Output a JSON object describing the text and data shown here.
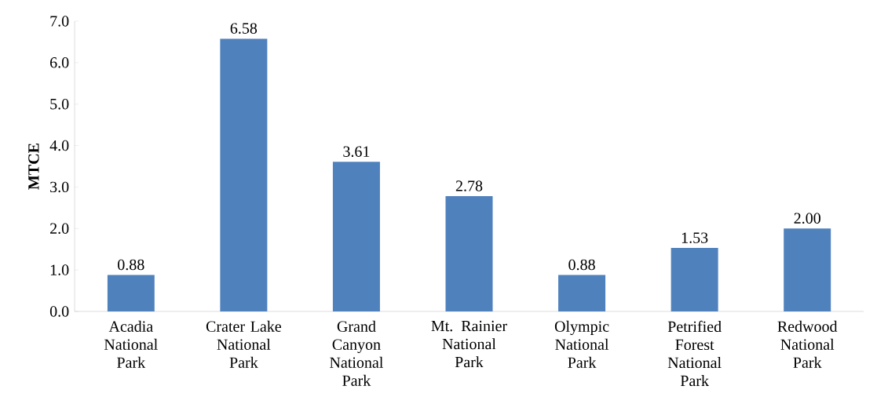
{
  "chart_data": {
    "type": "bar",
    "ylabel": "MTCE",
    "categories": [
      "Acadia National Park",
      "Crater Lake National Park",
      "Grand Canyon National Park",
      "Mt. Rainier National Park",
      "Olympic National Park",
      "Petrified Forest National Park",
      "Redwood National Park"
    ],
    "values": [
      0.88,
      6.58,
      3.61,
      2.78,
      0.88,
      1.53,
      2.0
    ],
    "value_labels": [
      "0.88",
      "6.58",
      "3.61",
      "2.78",
      "0.88",
      "1.53",
      "2.00"
    ],
    "color": "#4f81bd",
    "ylim": [
      0,
      7
    ],
    "yticks": [
      {
        "value": 0,
        "label": "0.0"
      },
      {
        "value": 1,
        "label": "1.0"
      },
      {
        "value": 2,
        "label": "2.0"
      },
      {
        "value": 3,
        "label": "3.0"
      },
      {
        "value": 4,
        "label": "4.0"
      },
      {
        "value": 5,
        "label": "5.0"
      },
      {
        "value": 6,
        "label": "6.0"
      },
      {
        "value": 7,
        "label": "7.0"
      }
    ],
    "grid": false
  }
}
